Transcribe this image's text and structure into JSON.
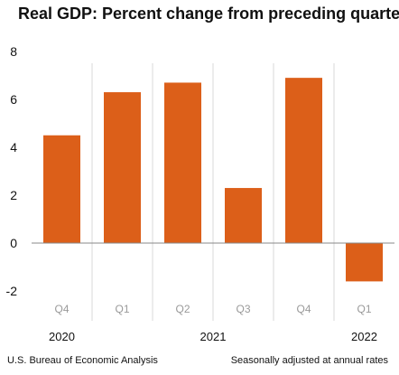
{
  "chart_data": {
    "type": "bar",
    "title": "Real GDP:  Percent change from preceding quarter",
    "categories": [
      "Q4",
      "Q1",
      "Q2",
      "Q3",
      "Q4",
      "Q1"
    ],
    "years": [
      "2020",
      "2021",
      "2022"
    ],
    "year_groups": [
      {
        "year": "2020",
        "from": 0,
        "to": 0
      },
      {
        "year": "2021",
        "from": 1,
        "to": 4
      },
      {
        "year": "2022",
        "from": 5,
        "to": 5
      }
    ],
    "values": [
      4.5,
      6.3,
      6.7,
      2.3,
      6.9,
      -1.6
    ],
    "ylim": [
      -2,
      8
    ],
    "yticks": [
      -2,
      0,
      2,
      4,
      6,
      8
    ],
    "xlabel": "",
    "ylabel": "",
    "colors": {
      "bar": "#dc5f19",
      "axis": "#888888",
      "grid": "#d9d9d9"
    },
    "grid": false
  },
  "footer": {
    "source": "U.S. Bureau of Economic Analysis",
    "note": "Seasonally adjusted at annual rates"
  }
}
